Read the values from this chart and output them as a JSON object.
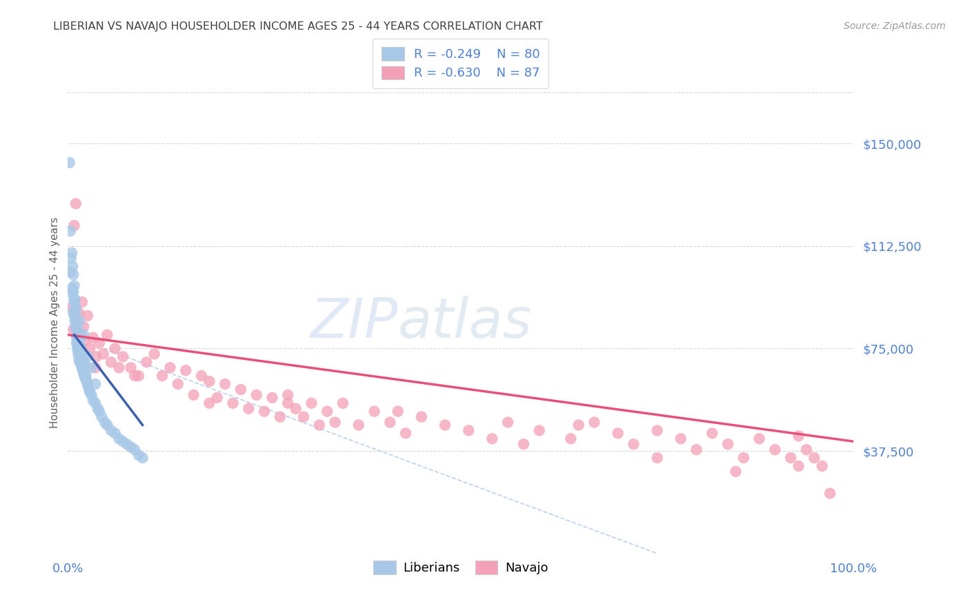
{
  "title": "LIBERIAN VS NAVAJO HOUSEHOLDER INCOME AGES 25 - 44 YEARS CORRELATION CHART",
  "source": "Source: ZipAtlas.com",
  "ylabel": "Householder Income Ages 25 - 44 years",
  "xlabel_start": "0.0%",
  "xlabel_end": "100.0%",
  "ytick_labels": [
    "$37,500",
    "$75,000",
    "$112,500",
    "$150,000"
  ],
  "ytick_values": [
    37500,
    75000,
    112500,
    150000
  ],
  "ymin": 0,
  "ymax": 168750,
  "xmin": 0.0,
  "xmax": 1.0,
  "liberian_R": "-0.249",
  "liberian_N": "80",
  "navajo_R": "-0.630",
  "navajo_N": "87",
  "liberian_color": "#a8c8e8",
  "navajo_color": "#f4a0b8",
  "liberian_line_color": "#3a60b0",
  "navajo_line_color": "#e8507a",
  "diagonal_color": "#b0c8e8",
  "title_color": "#404040",
  "ylabel_color": "#606060",
  "axis_label_color": "#5080d0",
  "watermark_color": "#d0dff0",
  "background_color": "#ffffff",
  "lib_x": [
    0.002,
    0.003,
    0.004,
    0.004,
    0.005,
    0.005,
    0.006,
    0.006,
    0.007,
    0.007,
    0.007,
    0.008,
    0.008,
    0.008,
    0.009,
    0.009,
    0.009,
    0.01,
    0.01,
    0.01,
    0.01,
    0.011,
    0.011,
    0.011,
    0.012,
    0.012,
    0.012,
    0.013,
    0.013,
    0.013,
    0.014,
    0.014,
    0.014,
    0.015,
    0.015,
    0.015,
    0.016,
    0.016,
    0.017,
    0.017,
    0.018,
    0.018,
    0.019,
    0.019,
    0.02,
    0.02,
    0.021,
    0.021,
    0.022,
    0.022,
    0.023,
    0.024,
    0.025,
    0.026,
    0.027,
    0.028,
    0.03,
    0.032,
    0.035,
    0.038,
    0.04,
    0.043,
    0.047,
    0.05,
    0.055,
    0.06,
    0.065,
    0.07,
    0.075,
    0.08,
    0.085,
    0.09,
    0.095,
    0.02,
    0.025,
    0.03,
    0.035,
    0.015,
    0.013,
    0.008
  ],
  "lib_y": [
    143000,
    118000,
    108000,
    103000,
    110000,
    97000,
    105000,
    95000,
    102000,
    96000,
    88000,
    98000,
    92000,
    87000,
    93000,
    89000,
    85000,
    90000,
    86000,
    83000,
    88000,
    82000,
    79000,
    77000,
    82000,
    78000,
    75000,
    80000,
    76000,
    73000,
    78000,
    74000,
    71000,
    76000,
    73000,
    70000,
    75000,
    71000,
    73000,
    69000,
    72000,
    68000,
    71000,
    67000,
    70000,
    66000,
    69000,
    65000,
    68000,
    64000,
    65000,
    63000,
    62000,
    61000,
    60000,
    59000,
    58000,
    56000,
    55000,
    53000,
    52000,
    50000,
    48000,
    47000,
    45000,
    44000,
    42000,
    41000,
    40000,
    39000,
    38000,
    36000,
    35000,
    80000,
    72000,
    68000,
    62000,
    85000,
    78000,
    93000
  ],
  "nav_x": [
    0.005,
    0.008,
    0.01,
    0.012,
    0.014,
    0.016,
    0.018,
    0.02,
    0.022,
    0.025,
    0.028,
    0.032,
    0.036,
    0.04,
    0.045,
    0.05,
    0.055,
    0.06,
    0.065,
    0.07,
    0.08,
    0.09,
    0.1,
    0.11,
    0.12,
    0.13,
    0.14,
    0.15,
    0.16,
    0.17,
    0.18,
    0.19,
    0.2,
    0.21,
    0.22,
    0.23,
    0.24,
    0.25,
    0.26,
    0.27,
    0.28,
    0.29,
    0.3,
    0.31,
    0.32,
    0.33,
    0.34,
    0.35,
    0.37,
    0.39,
    0.41,
    0.43,
    0.45,
    0.48,
    0.51,
    0.54,
    0.56,
    0.6,
    0.64,
    0.67,
    0.7,
    0.72,
    0.75,
    0.78,
    0.8,
    0.82,
    0.84,
    0.86,
    0.88,
    0.9,
    0.92,
    0.93,
    0.94,
    0.95,
    0.96,
    0.007,
    0.035,
    0.085,
    0.18,
    0.28,
    0.42,
    0.58,
    0.65,
    0.75,
    0.85,
    0.93,
    0.97
  ],
  "nav_y": [
    90000,
    120000,
    128000,
    85000,
    88000,
    80000,
    92000,
    83000,
    78000,
    87000,
    75000,
    79000,
    72000,
    77000,
    73000,
    80000,
    70000,
    75000,
    68000,
    72000,
    68000,
    65000,
    70000,
    73000,
    65000,
    68000,
    62000,
    67000,
    58000,
    65000,
    63000,
    57000,
    62000,
    55000,
    60000,
    53000,
    58000,
    52000,
    57000,
    50000,
    55000,
    53000,
    50000,
    55000,
    47000,
    52000,
    48000,
    55000,
    47000,
    52000,
    48000,
    44000,
    50000,
    47000,
    45000,
    42000,
    48000,
    45000,
    42000,
    48000,
    44000,
    40000,
    45000,
    42000,
    38000,
    44000,
    40000,
    35000,
    42000,
    38000,
    35000,
    32000,
    38000,
    35000,
    32000,
    82000,
    68000,
    65000,
    55000,
    58000,
    52000,
    40000,
    47000,
    35000,
    30000,
    43000,
    22000
  ],
  "lib_line_x": [
    0.008,
    0.095
  ],
  "lib_line_y": [
    80000,
    47000
  ],
  "nav_line_x": [
    0.0,
    1.0
  ],
  "nav_line_y": [
    80000,
    41000
  ],
  "diag_line_x": [
    0.045,
    0.75
  ],
  "diag_line_y": [
    75000,
    0
  ]
}
